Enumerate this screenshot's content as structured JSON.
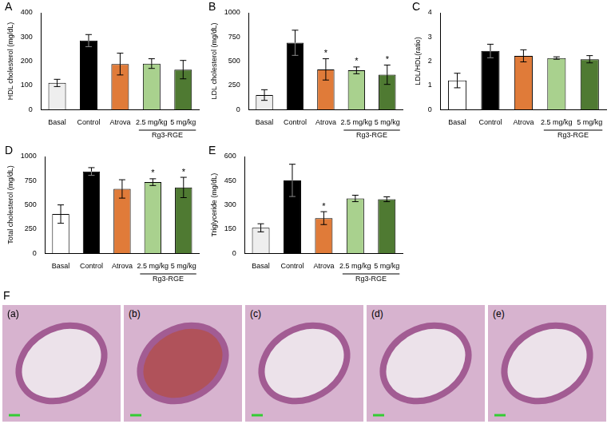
{
  "chart_data": [
    {
      "type": "bar",
      "title": "A",
      "y_label": "HDL cholesterol (mg/dL)",
      "categories": [
        "Basal",
        "Control",
        "Atrova",
        "2.5 mg/kg",
        "5 mg/kg"
      ],
      "values": [
        110,
        285,
        188,
        190,
        165
      ],
      "errors": [
        15,
        25,
        45,
        20,
        38
      ],
      "colors": [
        "#eeeeee",
        "#000000",
        "#e07b39",
        "#a9d18e",
        "#4f7a32"
      ],
      "ylim": [
        0,
        400
      ],
      "yticks": [
        0,
        100,
        200,
        300,
        400
      ],
      "grid": false,
      "group": {
        "text": "Rg3-RGE",
        "categories": [
          "2.5 mg/kg",
          "5 mg/kg"
        ]
      }
    },
    {
      "type": "bar",
      "title": "B",
      "y_label": "LDL cholesterol (mg/dL)",
      "categories": [
        "Basal",
        "Control",
        "Atrova",
        "2.5 mg/kg",
        "5 mg/kg"
      ],
      "values": [
        150,
        690,
        415,
        405,
        360
      ],
      "errors": [
        55,
        130,
        110,
        35,
        100
      ],
      "colors": [
        "#eeeeee",
        "#000000",
        "#e07b39",
        "#a9d18e",
        "#4f7a32"
      ],
      "ylim": [
        0,
        1000
      ],
      "yticks": [
        0,
        250,
        500,
        750,
        1000
      ],
      "grid": false,
      "annotations": [
        {
          "category": "Atrova",
          "text": "*"
        },
        {
          "category": "2.5 mg/kg",
          "text": "*"
        },
        {
          "category": "5 mg/kg",
          "text": "*"
        }
      ],
      "group": {
        "text": "Rg3-RGE",
        "categories": [
          "2.5 mg/kg",
          "5 mg/kg"
        ]
      }
    },
    {
      "type": "bar",
      "title": "C",
      "y_label": "LDL/HDL(ratio)",
      "categories": [
        "Basal",
        "Control",
        "Atrova",
        "2.5 mg/kg",
        "5 mg/kg"
      ],
      "values": [
        1.2,
        2.42,
        2.22,
        2.13,
        2.08
      ],
      "errors": [
        0.3,
        0.28,
        0.25,
        0.05,
        0.15
      ],
      "colors": [
        "#ffffff",
        "#000000",
        "#e07b39",
        "#a9d18e",
        "#4f7a32"
      ],
      "ylim": [
        0,
        4
      ],
      "yticks": [
        0,
        1,
        2,
        3,
        4
      ],
      "grid": false,
      "group": {
        "text": "Rg3-RGE",
        "categories": [
          "2.5 mg/kg",
          "5 mg/kg"
        ]
      }
    },
    {
      "type": "bar",
      "title": "D",
      "y_label": "Total cholesterol (mg/dL)",
      "categories": [
        "Basal",
        "Control",
        "Atrova",
        "2.5 mg/kg",
        "5 mg/kg"
      ],
      "values": [
        405,
        845,
        665,
        735,
        680
      ],
      "errors": [
        95,
        40,
        95,
        35,
        105
      ],
      "colors": [
        "#ffffff",
        "#000000",
        "#e07b39",
        "#a9d18e",
        "#4f7a32"
      ],
      "ylim": [
        0,
        1000
      ],
      "yticks": [
        0,
        250,
        500,
        750,
        1000
      ],
      "grid": false,
      "annotations": [
        {
          "category": "2.5 mg/kg",
          "text": "*"
        },
        {
          "category": "5 mg/kg",
          "text": "*"
        }
      ],
      "group": {
        "text": "Rg3-RGE",
        "categories": [
          "2.5 mg/kg",
          "5 mg/kg"
        ]
      }
    },
    {
      "type": "bar",
      "title": "E",
      "y_label": "Triglyceride (mg/dL)",
      "categories": [
        "Basal",
        "Control",
        "Atrova",
        "2.5 mg/kg",
        "5 mg/kg"
      ],
      "values": [
        158,
        452,
        218,
        340,
        335
      ],
      "errors": [
        25,
        100,
        40,
        20,
        15
      ],
      "colors": [
        "#eeeeee",
        "#000000",
        "#e07b39",
        "#a9d18e",
        "#4f7a32"
      ],
      "ylim": [
        0,
        600
      ],
      "yticks": [
        0,
        150,
        300,
        450,
        600
      ],
      "grid": false,
      "annotations": [
        {
          "category": "Atrova",
          "text": "*"
        }
      ],
      "group": {
        "text": "Rg3-RGE",
        "categories": [
          "2.5 mg/kg",
          "5 mg/kg"
        ]
      }
    }
  ],
  "panel_F": {
    "title": "F",
    "images": [
      "(a)",
      "(b)",
      "(c)",
      "(d)",
      "(e)"
    ]
  }
}
